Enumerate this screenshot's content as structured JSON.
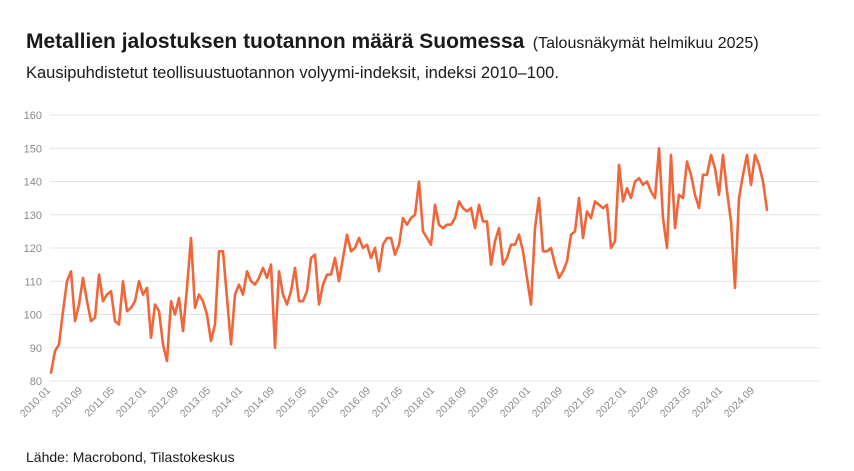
{
  "header": {
    "title": "Metallien jalostuksen tuotannon määrä Suomessa",
    "title_note": "(Talousnäkymät helmikuu 2025)",
    "subtitle": "Kausipuhdistetut teollisuustuotannon volyymi-indeksit, indeksi 2010–100."
  },
  "footer": {
    "source": "Lähde: Macrobond, Tilastokeskus"
  },
  "colors": {
    "line": "#f0663a",
    "grid": "#e3e3e3",
    "axis_text": "#8a8a8a"
  },
  "chart_data": {
    "type": "line",
    "title": "",
    "xlabel": "",
    "ylabel": "",
    "ylim": [
      80,
      160
    ],
    "y_ticks": [
      "80",
      "90",
      "100",
      "110",
      "120",
      "130",
      "140",
      "150",
      "160"
    ],
    "x_ticks": [
      "2010.01",
      "2010.09",
      "2011.05",
      "2012.01",
      "2012.09",
      "2013.05",
      "2014.01",
      "2014.09",
      "2015.05",
      "2016.01",
      "2016.09",
      "2017.05",
      "2018.01",
      "2018.09",
      "2019.05",
      "2020.01",
      "2020.09",
      "2021.05",
      "2022.01",
      "2022.09",
      "2023.05",
      "2024.01",
      "2024.09"
    ],
    "grid": "horizontal",
    "legend": "none",
    "series": [
      {
        "start": "2010.01",
        "frequency": "monthly",
        "values": [
          82.5,
          89,
          91,
          101,
          110,
          113,
          98,
          103,
          111,
          104,
          98,
          99,
          112,
          104,
          106,
          107,
          98,
          97,
          110,
          101,
          102,
          104,
          110,
          106,
          108,
          93,
          103,
          101,
          91,
          86,
          104,
          100,
          105,
          95,
          108,
          123,
          102,
          106,
          104,
          100,
          92,
          97,
          119,
          119,
          105,
          91,
          106,
          109,
          106,
          113,
          110,
          109,
          111,
          114,
          111,
          115,
          90,
          113,
          106,
          103,
          107,
          114,
          104,
          104,
          107,
          117,
          118,
          103,
          109,
          112,
          112,
          117,
          110,
          117,
          124,
          119,
          120,
          123,
          120,
          121,
          117,
          120,
          113,
          121,
          123,
          123,
          118,
          121,
          129,
          127,
          129,
          130,
          140,
          125,
          123,
          121,
          133,
          127,
          126,
          127,
          127,
          129,
          134,
          132,
          131,
          132,
          126,
          133,
          128,
          128,
          115,
          122,
          126,
          115,
          117,
          121,
          121,
          124,
          119,
          111,
          103,
          126,
          135,
          119,
          119,
          120,
          115,
          111,
          113,
          116,
          124,
          125,
          135,
          123,
          131,
          129,
          134,
          133,
          132,
          133,
          120,
          122,
          145,
          134,
          138,
          135,
          140,
          141,
          139,
          140,
          137,
          135,
          150,
          129,
          120,
          148,
          126,
          136,
          135,
          146,
          142,
          136,
          132,
          142,
          142,
          148,
          144,
          136,
          148,
          137,
          128,
          108,
          135,
          142,
          148,
          139,
          148,
          145,
          140,
          131.5
        ]
      }
    ]
  }
}
